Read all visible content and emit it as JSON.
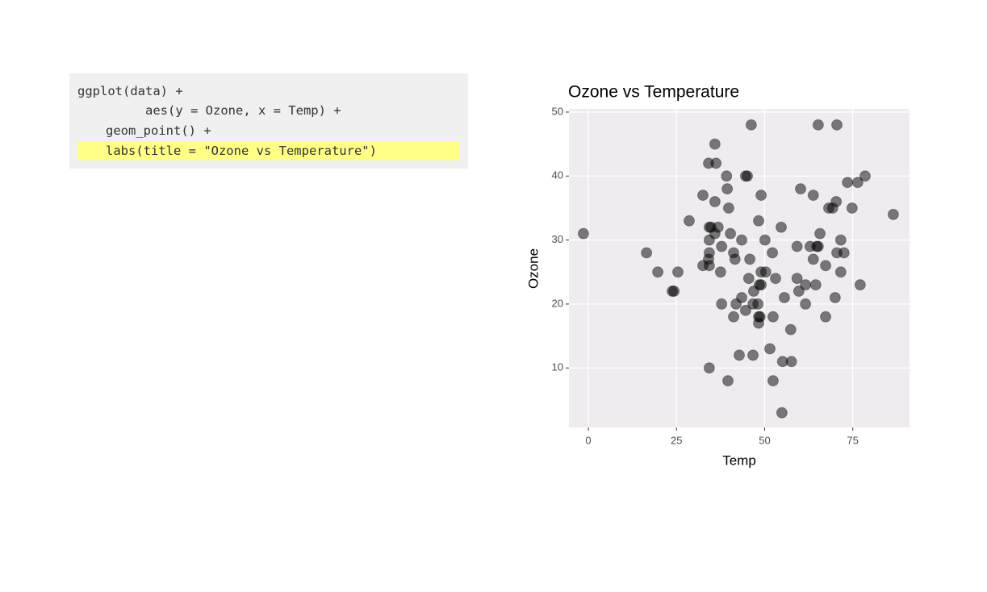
{
  "code": {
    "lines": [
      "ggplot(data) +",
      "aes(y = Ozone, x = Temp) +",
      "geom_point() +",
      "labs(title = \"Ozone vs Temperature\")"
    ]
  },
  "chart_data": {
    "type": "scatter",
    "title": "Ozone vs Temperature",
    "x_label": "Temp",
    "y_label": "Ozone",
    "xlim": [
      -5.5,
      91.1
    ],
    "ylim": [
      0.7,
      50.5
    ],
    "xticks": [
      0,
      25,
      50,
      75
    ],
    "yticks": [
      10,
      20,
      30,
      40,
      50
    ],
    "grid": true,
    "series": [
      {
        "color": "#000000",
        "x": [
          -1.4,
          16.5,
          19.7,
          25.4,
          23.8,
          24.3,
          28.6,
          32.5,
          32.5,
          34.1,
          34.3,
          34.8,
          34.3,
          34.3,
          34.1,
          34.3,
          34.3,
          35.9,
          36.2,
          35.9,
          36.8,
          35.9,
          37.5,
          37.8,
          37.8,
          39.2,
          39.4,
          39.8,
          40.3,
          41.2,
          41.6,
          39.6,
          41.2,
          41.9,
          42.8,
          43.5,
          43.5,
          44.6,
          44.6,
          45.1,
          45.5,
          45.8,
          46.2,
          46.7,
          46.7,
          46.9,
          48.1,
          48.3,
          48.3,
          48.7,
          48.3,
          48.5,
          49.0,
          49.0,
          49.0,
          50.1,
          50.3,
          51.5,
          52.2,
          52.4,
          52.4,
          53.1,
          54.7,
          54.9,
          55.1,
          55.6,
          57.4,
          57.6,
          59.2,
          59.2,
          59.7,
          60.2,
          61.6,
          61.6,
          62.9,
          63.8,
          63.8,
          64.5,
          64.8,
          65.2,
          65.2,
          65.7,
          67.3,
          67.3,
          68.2,
          69.3,
          70.0,
          70.3,
          70.5,
          70.5,
          71.6,
          71.6,
          72.5,
          73.5,
          74.8,
          76.4,
          77.1,
          78.5,
          86.5
        ],
        "values": [
          31,
          28,
          25,
          25,
          22,
          22,
          33,
          37,
          26,
          42,
          32,
          32,
          30,
          28,
          27,
          26,
          10,
          45,
          42,
          36,
          32,
          31,
          25,
          20,
          29,
          40,
          38,
          35,
          31,
          28,
          27,
          8,
          18,
          20,
          12,
          30,
          21,
          19,
          40,
          40,
          24,
          27,
          48,
          12,
          20,
          22,
          20,
          17,
          18,
          18,
          33,
          23,
          23,
          37,
          25,
          30,
          25,
          13,
          28,
          18,
          8,
          24,
          32,
          3,
          11,
          21,
          16,
          11,
          29,
          24,
          22,
          38,
          23,
          20,
          29,
          37,
          27,
          23,
          29,
          29,
          48,
          31,
          26,
          18,
          35,
          35,
          21,
          36,
          28,
          48,
          30,
          25,
          28,
          39,
          35,
          39,
          23,
          40,
          34
        ]
      }
    ]
  }
}
